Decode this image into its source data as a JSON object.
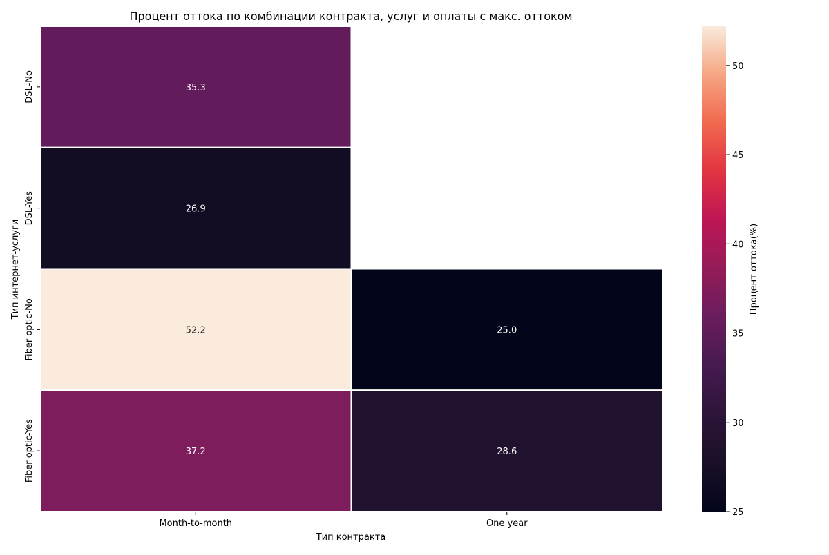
{
  "chart_data": {
    "type": "heatmap",
    "title": "Процент оттока по комбинации контракта, услуг и оплаты с макс. оттоком",
    "xlabel": "Тип контракта",
    "ylabel": "Тип интернет-услуги",
    "x_categories": [
      "Month-to-month",
      "One year"
    ],
    "y_categories": [
      "DSL-No",
      "DSL-Yes",
      "Fiber optic-No",
      "Fiber optic-Yes"
    ],
    "values": [
      [
        35.3,
        null
      ],
      [
        26.9,
        null
      ],
      [
        52.2,
        25.0
      ],
      [
        37.2,
        28.6
      ]
    ],
    "value_format": "0.1f",
    "colorbar": {
      "label": "Процент оттока(%)",
      "min": 25,
      "max": 52.2,
      "ticks": [
        25,
        30,
        35,
        40,
        45,
        50
      ],
      "colormap": "rocket"
    },
    "cell_border_color": "#ffffff",
    "grid": false
  }
}
